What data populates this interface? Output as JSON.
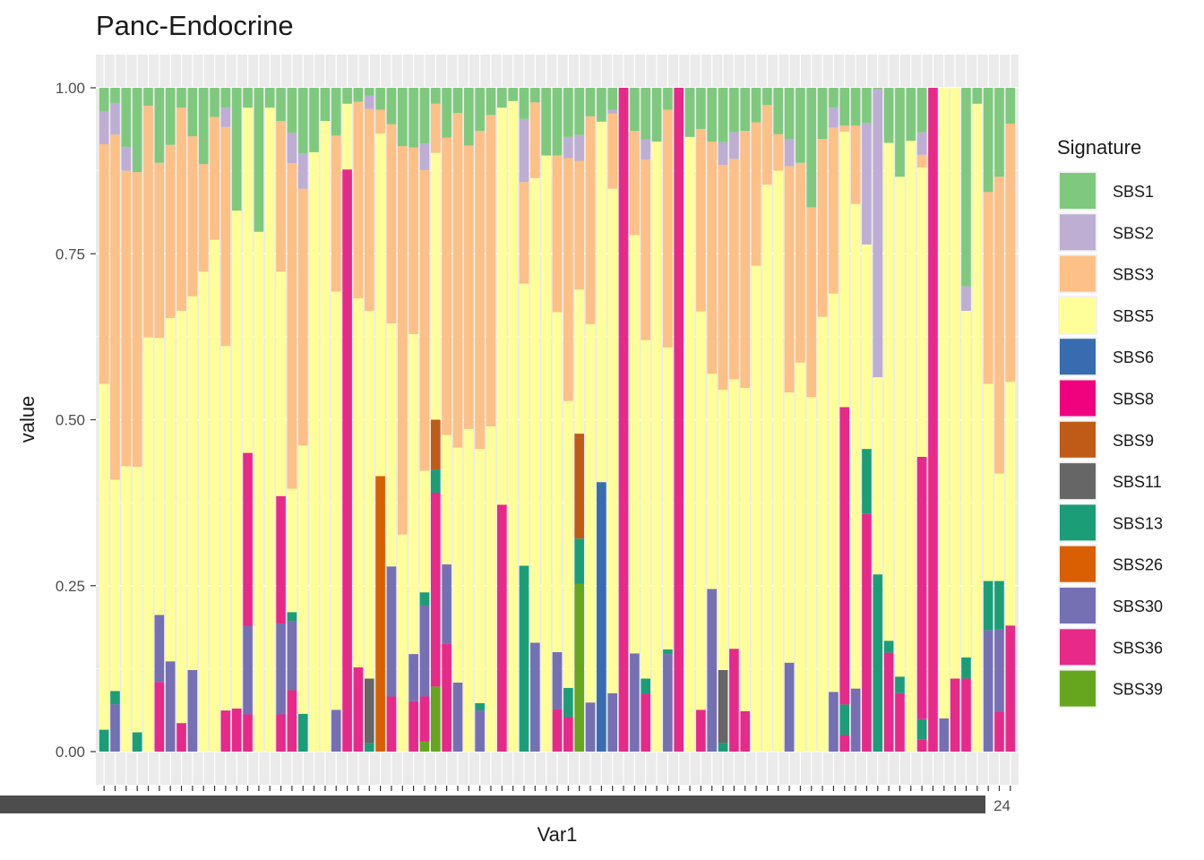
{
  "chart_data": {
    "type": "bar",
    "stacked": true,
    "title": "Panc-Endocrine",
    "xlabel": "Var1",
    "ylabel": "value",
    "ylim": [
      0,
      1
    ],
    "yticks": [
      "0.00",
      "0.25",
      "0.50",
      "0.75",
      "1.00"
    ],
    "ytick_values": [
      0,
      0.25,
      0.5,
      0.75,
      1.0
    ],
    "x_tick_label_tail": "24",
    "grid": true,
    "panel_background": "#ebebeb",
    "legend": {
      "title": "Signature",
      "position": "right"
    },
    "signatures": [
      {
        "name": "SBS1",
        "color": "#7FC97F"
      },
      {
        "name": "SBS2",
        "color": "#BEAED4"
      },
      {
        "name": "SBS3",
        "color": "#FDC086"
      },
      {
        "name": "SBS5",
        "color": "#FFFF99"
      },
      {
        "name": "SBS6",
        "color": "#386CB0"
      },
      {
        "name": "SBS8",
        "color": "#F0027F"
      },
      {
        "name": "SBS9",
        "color": "#BF5B17"
      },
      {
        "name": "SBS11",
        "color": "#666666"
      },
      {
        "name": "SBS13",
        "color": "#1B9E77"
      },
      {
        "name": "SBS26",
        "color": "#D95F02"
      },
      {
        "name": "SBS30",
        "color": "#7570B3"
      },
      {
        "name": "SBS36",
        "color": "#E7298A"
      },
      {
        "name": "SBS39",
        "color": "#66A61E"
      }
    ],
    "bar_stack_order": [
      "SBS39",
      "SBS36",
      "SBS30",
      "SBS26",
      "SBS13",
      "SBS11",
      "SBS9",
      "SBS8",
      "SBS6",
      "SBS5",
      "SBS3",
      "SBS2",
      "SBS1"
    ],
    "bars": [
      {
        "SBS13": 0.033,
        "SBS5": 0.521,
        "SBS3": 0.361,
        "SBS2": 0.05,
        "SBS1": 0.035
      },
      {
        "SBS30": 0.075,
        "SBS13": 0.021,
        "SBS5": 0.334,
        "SBS3": 0.546,
        "SBS2": 0.05,
        "SBS1": 0.024
      },
      {
        "SBS5": 0.43,
        "SBS3": 0.445,
        "SBS2": 0.036,
        "SBS1": 0.089
      },
      {
        "SBS13": 0.029,
        "SBS5": 0.4,
        "SBS3": 0.444,
        "SBS1": 0.127
      },
      {
        "SBS5": 0.624,
        "SBS3": 0.349,
        "SBS1": 0.027
      },
      {
        "SBS36": 0.105,
        "SBS30": 0.101,
        "SBS5": 0.417,
        "SBS3": 0.264,
        "SBS1": 0.113
      },
      {
        "SBS30": 0.136,
        "SBS5": 0.517,
        "SBS3": 0.261,
        "SBS1": 0.086
      },
      {
        "SBS36": 0.043,
        "SBS5": 0.621,
        "SBS3": 0.306,
        "SBS1": 0.03
      },
      {
        "SBS30": 0.123,
        "SBS5": 0.563,
        "SBS3": 0.241,
        "SBS1": 0.073
      },
      {
        "SBS5": 0.723,
        "SBS3": 0.162,
        "SBS1": 0.115
      },
      {
        "SBS5": 0.771,
        "SBS3": 0.185,
        "SBS1": 0.044
      },
      {
        "SBS36": 0.062,
        "SBS5": 0.549,
        "SBS3": 0.33,
        "SBS2": 0.029,
        "SBS1": 0.03
      },
      {
        "SBS36": 0.065,
        "SBS5": 0.75,
        "SBS1": 0.185
      },
      {
        "SBS36": 0.056,
        "SBS30": 0.133,
        "SBS36b": 0.261,
        "SBS5": 0.52,
        "SBS1": 0.03
      },
      {
        "SBS5": 0.783,
        "SBS1": 0.217
      },
      {
        "SBS5": 0.97,
        "SBS1": 0.03
      },
      {
        "SBS36": 0.056,
        "SBS30": 0.137,
        "SBS36b": 0.192,
        "SBS5": 0.338,
        "SBS3": 0.227,
        "SBS1": 0.05
      },
      {
        "SBS36": 0.091,
        "SBS30": 0.103,
        "SBS13": 0.013,
        "SBS5": 0.183,
        "SBS3": 0.483,
        "SBS2": 0.045,
        "SBS1": 0.067
      },
      {
        "SBS13": 0.057,
        "SBS5": 0.404,
        "SBS3": 0.387,
        "SBS2": 0.053,
        "SBS1": 0.099
      },
      {
        "SBS5": 0.903,
        "SBS1": 0.097
      },
      {
        "SBS5": 0.95,
        "SBS1": 0.05
      },
      {
        "SBS30": 0.063,
        "SBS5": 0.63,
        "SBS3": 0.235,
        "SBS1": 0.072
      },
      {
        "SBS36": 0.877,
        "SBS5": 0.099,
        "SBS1": 0.024
      },
      {
        "SBS36": 0.127,
        "SBS5": 0.556,
        "SBS3": 0.296,
        "SBS1": 0.021
      },
      {
        "SBS13": 0.013,
        "SBS11": 0.097,
        "SBS5": 0.554,
        "SBS3": 0.304,
        "SBS2": 0.02,
        "SBS1": 0.012
      },
      {
        "SBS26": 0.415,
        "SBS5": 0.516,
        "SBS3": 0.036,
        "SBS1": 0.033
      },
      {
        "SBS36": 0.083,
        "SBS30": 0.196,
        "SBS5": 0.366,
        "SBS3": 0.3,
        "SBS1": 0.055
      },
      {
        "SBS5": 0.327,
        "SBS3": 0.585,
        "SBS1": 0.088
      },
      {
        "SBS36": 0.076,
        "SBS30": 0.071,
        "SBS5": 0.482,
        "SBS3": 0.281,
        "SBS1": 0.09
      },
      {
        "SBS39": 0.015,
        "SBS36": 0.068,
        "SBS30": 0.137,
        "SBS13": 0.02,
        "SBS5": 0.183,
        "SBS3": 0.453,
        "SBS2": 0.04,
        "SBS1": 0.084
      },
      {
        "SBS39": 0.098,
        "SBS13": 0.035,
        "SBS9": 0.075,
        "SBS36": 0.292,
        "SBS5": 0.402,
        "SBS3": 0.074,
        "SBS1": 0.024
      },
      {
        "SBS36": 0.162,
        "SBS30": 0.12,
        "SBS5": 0.195,
        "SBS3": 0.448,
        "SBS1": 0.075
      },
      {
        "SBS30": 0.104,
        "SBS5": 0.354,
        "SBS3": 0.504,
        "SBS2": 0.0,
        "SBS1": 0.038
      },
      {
        "SBS5": 0.486,
        "SBS3": 0.427,
        "SBS1": 0.087
      },
      {
        "SBS13": 0.011,
        "SBS30": 0.062,
        "SBS5": 0.383,
        "SBS3": 0.479,
        "SBS1": 0.065
      },
      {
        "SBS5": 0.49,
        "SBS3": 0.469,
        "SBS1": 0.041
      },
      {
        "SBS36": 0.372,
        "SBS5": 0.598,
        "SBS1": 0.03
      },
      {
        "SBS5": 0.98,
        "SBS1": 0.02
      },
      {
        "SBS13": 0.28,
        "SBS5": 0.425,
        "SBS2": 0.095,
        "SBS3": 0.153,
        "SBS1": 0.047
      },
      {
        "SBS30": 0.164,
        "SBS5": 0.7,
        "SBS3": 0.114,
        "SBS1": 0.022
      },
      {
        "SBS5": 0.898,
        "SBS1": 0.102
      },
      {
        "SBS36": 0.064,
        "SBS30": 0.086,
        "SBS5": 0.512,
        "SBS3": 0.236,
        "SBS1": 0.102
      },
      {
        "SBS36": 0.052,
        "SBS13": 0.044,
        "SBS5": 0.432,
        "SBS3": 0.366,
        "SBS2": 0.032,
        "SBS1": 0.074
      },
      {
        "SBS39": 0.253,
        "SBS13": 0.068,
        "SBS9": 0.158,
        "SBS5": 0.217,
        "SBS3": 0.194,
        "SBS2": 0.039,
        "SBS1": 0.071
      },
      {
        "SBS30": 0.074,
        "SBS5": 0.57,
        "SBS3": 0.313,
        "SBS1": 0.043
      },
      {
        "SBS6": 0.406,
        "SBS5": 0.543,
        "SBS1": 0.051
      },
      {
        "SBS30": 0.088,
        "SBS5": 0.76,
        "SBS3": 0.113,
        "SBS2": 0.006,
        "SBS1": 0.033
      },
      {
        "SBS36": 1.0
      },
      {
        "SBS30": 0.148,
        "SBS5": 0.63,
        "SBS3": 0.157,
        "SBS1": 0.065
      },
      {
        "SBS36": 0.087,
        "SBS13": 0.023,
        "SBS5": 0.51,
        "SBS3": 0.272,
        "SBS2": 0.03,
        "SBS1": 0.078
      },
      {
        "SBS5": 0.919,
        "SBS1": 0.081
      },
      {
        "SBS30": 0.147,
        "SBS13": 0.007,
        "SBS5": 0.455,
        "SBS3": 0.358,
        "SBS2": 0.0,
        "SBS1": 0.033
      },
      {
        "SBS36": 1.0
      },
      {
        "SBS5": 0.926,
        "SBS1": 0.074
      },
      {
        "SBS36": 0.063,
        "SBS5": 0.6,
        "SBS3": 0.275,
        "SBS1": 0.062
      },
      {
        "SBS30": 0.245,
        "SBS5": 0.324,
        "SBS3": 0.35,
        "SBS1": 0.081
      },
      {
        "SBS11": 0.11,
        "SBS13": 0.013,
        "SBS5": 0.422,
        "SBS3": 0.339,
        "SBS2": 0.034,
        "SBS1": 0.082
      },
      {
        "SBS36": 0.155,
        "SBS5": 0.406,
        "SBS3": 0.332,
        "SBS2": 0.04,
        "SBS1": 0.067
      },
      {
        "SBS36": 0.061,
        "SBS5": 0.487,
        "SBS3": 0.387,
        "SBS1": 0.065
      },
      {
        "SBS5": 0.732,
        "SBS3": 0.216,
        "SBS1": 0.052
      },
      {
        "SBS5": 0.854,
        "SBS3": 0.12,
        "SBS1": 0.026
      },
      {
        "SBS5": 0.875,
        "SBS3": 0.055,
        "SBS2": 0.0,
        "SBS1": 0.07
      },
      {
        "SBS30": 0.134,
        "SBS5": 0.407,
        "SBS3": 0.341,
        "SBS2": 0.041,
        "SBS1": 0.077
      },
      {
        "SBS5": 0.586,
        "SBS3": 0.301,
        "SBS1": 0.113
      },
      {
        "SBS5": 0.534,
        "SBS3": 0.286,
        "SBS1": 0.18
      },
      {
        "SBS5": 0.655,
        "SBS3": 0.268,
        "SBS1": 0.077
      },
      {
        "SBS30": 0.09,
        "SBS13": 0.0,
        "SBS5": 0.6,
        "SBS3": 0.25,
        "SBS2": 0.03,
        "SBS1": 0.03
      },
      {
        "SBS36": 0.025,
        "SBS13": 0.046,
        "SBS36b": 0.448,
        "SBS5": 0.415,
        "SBS3": 0.009,
        "SBS1": 0.057
      },
      {
        "SBS30": 0.095,
        "SBS5": 0.73,
        "SBS3": 0.118,
        "SBS1": 0.057
      },
      {
        "SBS36": 0.358,
        "SBS13": 0.098,
        "SBS5": 0.308,
        "SBS2": 0.183,
        "SBS1": 0.053
      },
      {
        "SBS13": 0.267,
        "SBS5": 0.297,
        "SBS2": 0.434,
        "SBS1": 0.002
      },
      {
        "SBS36": 0.149,
        "SBS13": 0.018,
        "SBS5": 0.75,
        "SBS3": 0.0,
        "SBS1": 0.083
      },
      {
        "SBS36": 0.088,
        "SBS13": 0.025,
        "SBS5": 0.753,
        "SBS1": 0.134
      },
      {
        "SBS5": 0.92,
        "SBS1": 0.08
      },
      {
        "SBS36": 0.018,
        "SBS13": 0.031,
        "SBS36b": 0.395,
        "SBS5": 0.436,
        "SBS3": 0.019,
        "SBS2": 0.034,
        "SBS1": 0.067
      },
      {
        "SBS36": 1.0
      },
      {
        "SBS30": 0.05,
        "SBS5": 0.95
      },
      {
        "SBS36": 0.11,
        "SBS5": 0.89
      },
      {
        "SBS36": 0.11,
        "SBS13": 0.032,
        "SBS5": 0.522,
        "SBS2": 0.037,
        "SBS3": 0.0,
        "SBS1": 0.299
      },
      {
        "SBS5": 0.976,
        "SBS1": 0.024
      },
      {
        "SBS30": 0.183,
        "SBS13": 0.074,
        "SBS5": 0.297,
        "SBS3": 0.289,
        "SBS1": 0.157
      },
      {
        "SBS36": 0.06,
        "SBS30": 0.124,
        "SBS13": 0.073,
        "SBS5": 0.162,
        "SBS3": 0.447,
        "SBS1": 0.134
      },
      {
        "SBS36": 0.19,
        "SBS5": 0.367,
        "SBS3": 0.389,
        "SBS1": 0.054
      }
    ]
  }
}
